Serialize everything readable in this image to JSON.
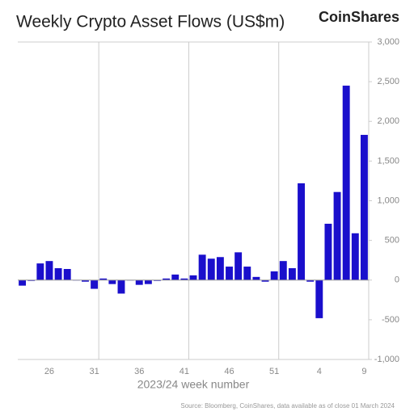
{
  "chart_data": {
    "type": "bar",
    "title": "Weekly Crypto Asset Flows (US$m)",
    "brand": "CoinShares",
    "x_label": "2023/24 week number",
    "source": "Source: Bloomberg, CoinShares, data available as of close 01 March 2024",
    "color": "#1a0fcc",
    "categories": [
      null,
      null,
      null,
      "26",
      null,
      null,
      null,
      null,
      "31",
      null,
      null,
      null,
      null,
      "36",
      null,
      null,
      null,
      null,
      "41",
      null,
      null,
      null,
      null,
      "46",
      null,
      null,
      null,
      null,
      "51",
      null,
      null,
      null,
      null,
      "4",
      null,
      null,
      null,
      null,
      "9"
    ],
    "values": [
      -70,
      -10,
      210,
      240,
      150,
      140,
      -5,
      -20,
      -110,
      20,
      -50,
      -170,
      0,
      -60,
      -50,
      -10,
      20,
      70,
      20,
      60,
      320,
      270,
      290,
      170,
      350,
      170,
      40,
      -20,
      110,
      240,
      150,
      1220,
      -20,
      -480,
      710,
      1110,
      2450,
      590,
      1830
    ],
    "ylim": [
      -1000,
      3000
    ],
    "yticks": [
      {
        "value": -1000,
        "label": "-1,000"
      },
      -500,
      0,
      500,
      {
        "value": 1000,
        "label": "1,000"
      },
      {
        "value": 1500,
        "label": "1,500"
      },
      {
        "value": 2000,
        "label": "2,000"
      },
      {
        "value": 2500,
        "label": "2,500"
      },
      {
        "value": 3000,
        "label": "3,000"
      }
    ]
  }
}
